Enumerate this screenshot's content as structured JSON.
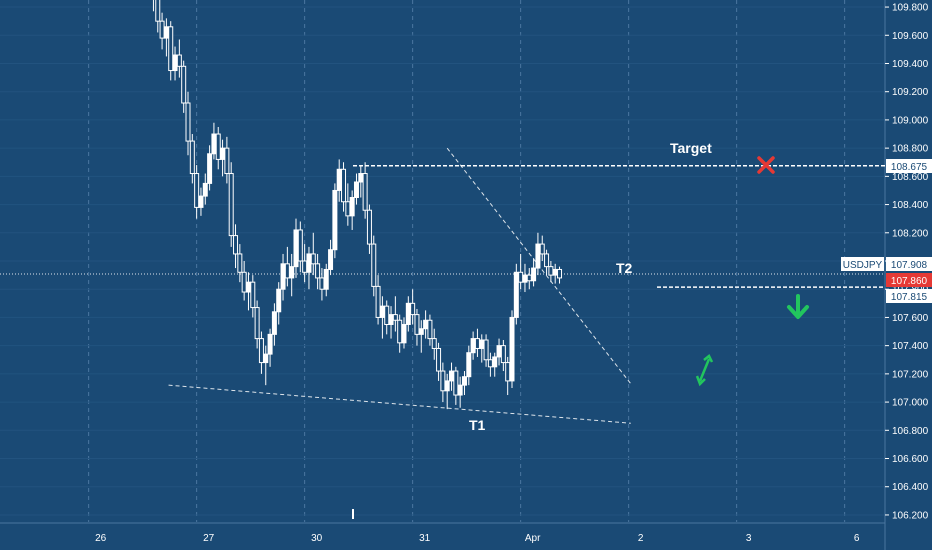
{
  "chart_data": {
    "type": "candlestick",
    "symbol": "USDJPY",
    "x_tick_labels": [
      "26",
      "27",
      "30",
      "31",
      "Apr",
      "2",
      "3",
      "6"
    ],
    "y_ticks": [
      109.8,
      109.6,
      109.4,
      109.2,
      109.0,
      108.8,
      108.6,
      108.4,
      108.2,
      108.0,
      107.8,
      107.6,
      107.4,
      107.2,
      107.0,
      106.8,
      106.6,
      106.4,
      106.2
    ],
    "y_tick_labels": [
      "109.800",
      "109.600",
      "109.400",
      "109.200",
      "109.000",
      "108.800",
      "108.600",
      "108.400",
      "108.200",
      "108.000",
      "107.800",
      "107.600",
      "107.400",
      "107.200",
      "107.000",
      "106.800",
      "106.600",
      "106.400",
      "106.200"
    ],
    "ylim": [
      106.15,
      109.85
    ],
    "price_labels": [
      {
        "text": "USDJPY",
        "color": "#ffffff"
      },
      {
        "text": "107.908",
        "color": "#ffffff"
      },
      {
        "text": "107.860",
        "color": "#e53935"
      },
      {
        "text": "107.815",
        "color": "#ffffff"
      },
      {
        "text": "108.675",
        "color": "#ffffff"
      }
    ],
    "levels": [
      {
        "value": 108.675,
        "style": "dashed"
      },
      {
        "value": 107.815,
        "style": "dashed"
      },
      {
        "value": 107.908,
        "style": "dotted"
      }
    ],
    "trendlines": [
      {
        "x0": 0.82,
        "y0": 107.12,
        "x1": 5.1,
        "y1": 106.85
      },
      {
        "x0": 3.4,
        "y0": 108.8,
        "x1": 5.1,
        "y1": 107.13
      }
    ],
    "annotations": [
      "Target",
      "T2",
      "T1"
    ],
    "candles": [
      [
        0.68,
        109.98,
        110.03,
        109.77,
        109.88
      ],
      [
        0.72,
        109.88,
        109.92,
        109.62,
        109.7
      ],
      [
        0.76,
        109.7,
        109.76,
        109.5,
        109.58
      ],
      [
        0.8,
        109.58,
        109.72,
        109.45,
        109.66
      ],
      [
        0.84,
        109.66,
        109.7,
        109.28,
        109.35
      ],
      [
        0.88,
        109.35,
        109.52,
        109.28,
        109.46
      ],
      [
        0.92,
        109.46,
        109.57,
        109.3,
        109.38
      ],
      [
        0.96,
        109.38,
        109.42,
        109.05,
        109.12
      ],
      [
        1.0,
        109.12,
        109.2,
        108.75,
        108.85
      ],
      [
        1.04,
        108.85,
        108.9,
        108.55,
        108.62
      ],
      [
        1.08,
        108.62,
        108.68,
        108.3,
        108.38
      ],
      [
        1.12,
        108.38,
        108.52,
        108.32,
        108.46
      ],
      [
        1.16,
        108.46,
        108.62,
        108.4,
        108.55
      ],
      [
        1.2,
        108.55,
        108.82,
        108.5,
        108.76
      ],
      [
        1.24,
        108.76,
        108.98,
        108.72,
        108.9
      ],
      [
        1.28,
        108.9,
        108.95,
        108.65,
        108.72
      ],
      [
        1.32,
        108.72,
        108.86,
        108.6,
        108.8
      ],
      [
        1.36,
        108.8,
        108.88,
        108.55,
        108.62
      ],
      [
        1.4,
        108.62,
        108.7,
        108.1,
        108.18
      ],
      [
        1.44,
        108.18,
        108.26,
        107.95,
        108.05
      ],
      [
        1.48,
        108.05,
        108.12,
        107.85,
        107.92
      ],
      [
        1.52,
        107.92,
        108.0,
        107.72,
        107.78
      ],
      [
        1.56,
        107.78,
        107.92,
        107.65,
        107.85
      ],
      [
        1.6,
        107.85,
        107.9,
        107.6,
        107.67
      ],
      [
        1.64,
        107.67,
        107.72,
        107.38,
        107.45
      ],
      [
        1.68,
        107.45,
        107.5,
        107.2,
        107.28
      ],
      [
        1.72,
        107.28,
        107.4,
        107.12,
        107.34
      ],
      [
        1.76,
        107.34,
        107.52,
        107.25,
        107.48
      ],
      [
        1.8,
        107.48,
        107.7,
        107.4,
        107.64
      ],
      [
        1.84,
        107.64,
        107.85,
        107.55,
        107.8
      ],
      [
        1.88,
        107.8,
        108.05,
        107.72,
        107.98
      ],
      [
        1.92,
        107.98,
        108.1,
        107.82,
        107.88
      ],
      [
        1.96,
        107.88,
        108.05,
        107.75,
        107.96
      ],
      [
        2.0,
        107.96,
        108.3,
        107.88,
        108.22
      ],
      [
        2.04,
        108.22,
        108.28,
        107.92,
        108.0
      ],
      [
        2.08,
        108.0,
        108.12,
        107.85,
        107.92
      ],
      [
        2.12,
        107.92,
        108.1,
        107.8,
        108.05
      ],
      [
        2.16,
        108.05,
        108.2,
        107.9,
        107.98
      ],
      [
        2.2,
        107.98,
        108.05,
        107.8,
        107.88
      ],
      [
        2.24,
        107.88,
        107.95,
        107.72,
        107.8
      ],
      [
        2.28,
        107.8,
        107.98,
        107.75,
        107.94
      ],
      [
        2.32,
        107.94,
        108.15,
        107.9,
        108.08
      ],
      [
        2.36,
        108.08,
        108.55,
        108.02,
        108.5
      ],
      [
        2.4,
        108.5,
        108.72,
        108.42,
        108.65
      ],
      [
        2.44,
        108.65,
        108.7,
        108.35,
        108.42
      ],
      [
        2.48,
        108.42,
        108.55,
        108.25,
        108.32
      ],
      [
        2.52,
        108.32,
        108.5,
        108.22,
        108.45
      ],
      [
        2.56,
        108.45,
        108.62,
        108.4,
        108.56
      ],
      [
        2.6,
        108.56,
        108.68,
        108.45,
        108.62
      ],
      [
        2.64,
        108.62,
        108.7,
        108.3,
        108.36
      ],
      [
        2.68,
        108.36,
        108.4,
        108.05,
        108.12
      ],
      [
        2.72,
        108.12,
        108.18,
        107.75,
        107.82
      ],
      [
        2.76,
        107.82,
        107.9,
        107.55,
        107.6
      ],
      [
        2.8,
        107.6,
        107.75,
        107.45,
        107.68
      ],
      [
        2.84,
        107.68,
        107.72,
        107.48,
        107.55
      ],
      [
        2.88,
        107.55,
        107.68,
        107.45,
        107.62
      ],
      [
        2.92,
        107.62,
        107.75,
        107.5,
        107.58
      ],
      [
        2.96,
        107.58,
        107.62,
        107.35,
        107.42
      ],
      [
        3.0,
        107.42,
        107.6,
        107.38,
        107.55
      ],
      [
        3.04,
        107.55,
        107.75,
        107.5,
        107.7
      ],
      [
        3.08,
        107.7,
        107.8,
        107.55,
        107.62
      ],
      [
        3.12,
        107.62,
        107.66,
        107.4,
        107.48
      ],
      [
        3.16,
        107.48,
        107.58,
        107.35,
        107.52
      ],
      [
        3.2,
        107.52,
        107.65,
        107.45,
        107.58
      ],
      [
        3.24,
        107.58,
        107.62,
        107.4,
        107.45
      ],
      [
        3.28,
        107.45,
        107.52,
        107.3,
        107.38
      ],
      [
        3.32,
        107.38,
        107.42,
        107.15,
        107.22
      ],
      [
        3.36,
        107.22,
        107.28,
        107.0,
        107.08
      ],
      [
        3.4,
        107.08,
        107.2,
        106.95,
        107.15
      ],
      [
        3.44,
        107.15,
        107.28,
        107.08,
        107.22
      ],
      [
        3.48,
        107.22,
        107.25,
        106.98,
        107.05
      ],
      [
        3.52,
        107.05,
        107.18,
        106.96,
        107.12
      ],
      [
        3.56,
        107.12,
        107.22,
        107.05,
        107.18
      ],
      [
        3.6,
        107.18,
        107.4,
        107.12,
        107.35
      ],
      [
        3.64,
        107.35,
        107.5,
        107.3,
        107.45
      ],
      [
        3.68,
        107.45,
        107.52,
        107.32,
        107.38
      ],
      [
        3.72,
        107.38,
        107.48,
        107.28,
        107.44
      ],
      [
        3.76,
        107.44,
        107.48,
        107.25,
        107.3
      ],
      [
        3.8,
        107.3,
        107.35,
        107.18,
        107.25
      ],
      [
        3.84,
        107.25,
        107.35,
        107.18,
        107.32
      ],
      [
        3.88,
        107.32,
        107.45,
        107.26,
        107.4
      ],
      [
        3.92,
        107.4,
        107.44,
        107.22,
        107.28
      ],
      [
        3.96,
        107.28,
        107.32,
        107.05,
        107.15
      ],
      [
        4.0,
        107.15,
        107.65,
        107.1,
        107.6
      ],
      [
        4.04,
        107.6,
        107.98,
        107.55,
        107.92
      ],
      [
        4.08,
        107.92,
        108.05,
        107.8,
        107.85
      ],
      [
        4.12,
        107.85,
        107.98,
        107.78,
        107.9
      ],
      [
        4.16,
        107.9,
        107.95,
        107.8,
        107.86
      ],
      [
        4.2,
        107.86,
        108.02,
        107.82,
        107.95
      ],
      [
        4.24,
        107.95,
        108.2,
        107.9,
        108.12
      ],
      [
        4.28,
        108.12,
        108.18,
        108.0,
        108.05
      ],
      [
        4.32,
        108.05,
        108.08,
        107.9,
        107.96
      ],
      [
        4.36,
        107.96,
        108.0,
        107.85,
        107.9
      ],
      [
        4.4,
        107.9,
        107.98,
        107.84,
        107.94
      ],
      [
        4.44,
        107.94,
        107.96,
        107.84,
        107.88
      ]
    ]
  }
}
